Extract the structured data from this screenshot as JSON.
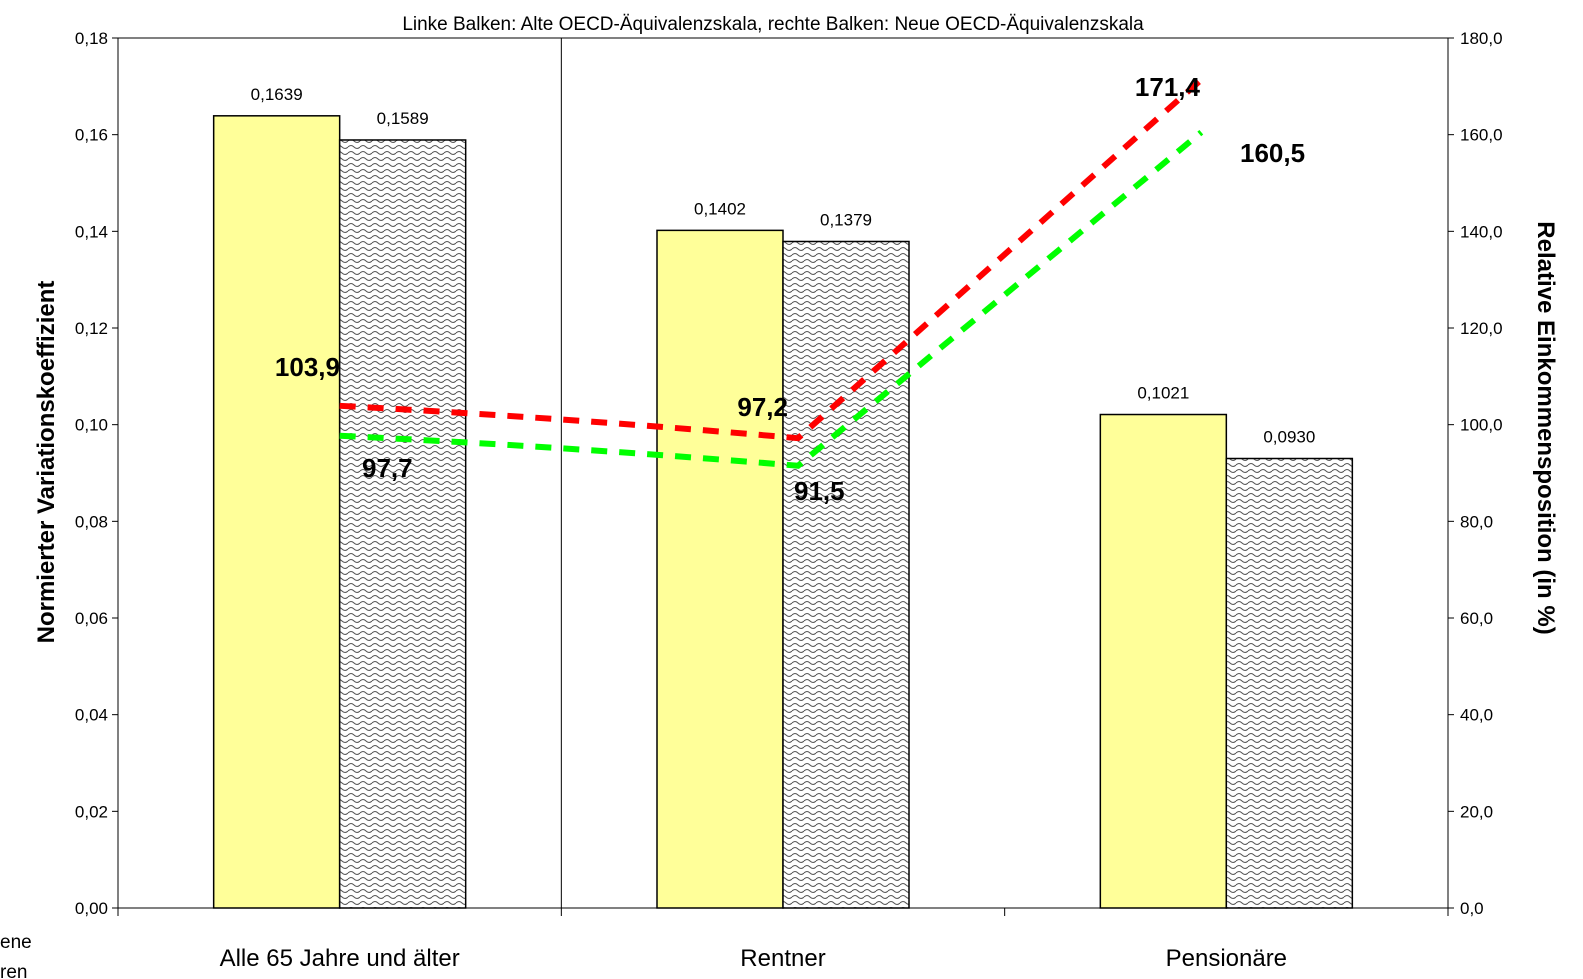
{
  "chart_data": {
    "type": "bar",
    "title": "Linke Balken: Alte OECD-Äquivalenzskala, rechte Balken: Neue OECD-Äquivalenzskala",
    "ylabel": "Normierter Variationskoeffizient",
    "y2label": "Relative Einkommensposition (in %)",
    "categories": [
      "Alle 65 Jahre und älter",
      "Rentner",
      "Pensionäre"
    ],
    "ylim": [
      0,
      0.18
    ],
    "y2lim": [
      0,
      180
    ],
    "yticks": [
      "0,00",
      "0,02",
      "0,04",
      "0,06",
      "0,08",
      "0,10",
      "0,12",
      "0,14",
      "0,16",
      "0,18"
    ],
    "y2ticks": [
      "0,0",
      "20,0",
      "40,0",
      "60,0",
      "80,0",
      "100,0",
      "120,0",
      "140,0",
      "160,0",
      "180,0"
    ],
    "series": [
      {
        "values": [
          0.1639,
          0.1402,
          0.1021
        ],
        "labels": [
          "0,1639",
          "0,1402",
          "0,1021"
        ],
        "color": "#ffff99",
        "pattern": "solid"
      },
      {
        "values": [
          0.1589,
          0.1379,
          0.093
        ],
        "labels": [
          "0,1589",
          "0,1379",
          "0,0930"
        ],
        "color": "#c8c8c8",
        "pattern": "wave"
      }
    ],
    "lines": [
      {
        "axis": "secondary",
        "color": "#ff0000",
        "style": "dashed",
        "values": [
          103.9,
          97.2,
          171.4
        ],
        "labels": [
          "103,9",
          "97,2",
          "171,4"
        ]
      },
      {
        "axis": "secondary",
        "color": "#00ff00",
        "style": "dashed",
        "values": [
          97.7,
          91.5,
          160.5
        ],
        "labels": [
          "97,7",
          "91,5",
          "160,5"
        ]
      }
    ],
    "grid": false,
    "separator_after_category": 0
  },
  "cutoff_text": [
    "ene",
    "ren"
  ]
}
